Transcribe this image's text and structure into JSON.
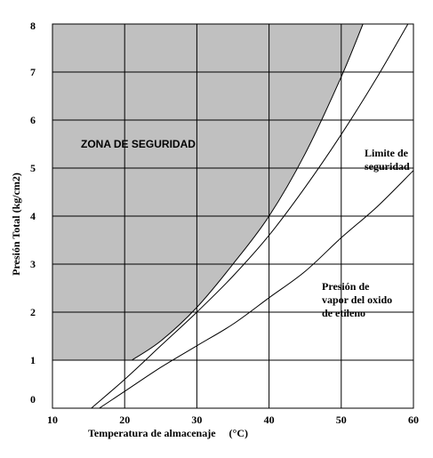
{
  "chart_data": {
    "type": "line",
    "xlabel": "Temperatura de almacenaje",
    "xunit": "(°C)",
    "ylabel": "Presión Total (kg/cm2)",
    "xlim": [
      10,
      60
    ],
    "ylim": [
      0,
      8
    ],
    "x_ticks": [
      "10",
      "20",
      "30",
      "40",
      "50",
      "60"
    ],
    "y_ticks": [
      "0",
      "1",
      "2",
      "3",
      "4",
      "5",
      "6",
      "7",
      "8"
    ],
    "grid": true,
    "zone_fill": "#c0c0c0",
    "zone_label": "ZONA DE SEGURIDAD",
    "series": [
      {
        "name": "Limite de seguridad",
        "label_lines": [
          "Limite de",
          "seguridad"
        ],
        "color": "#000000",
        "x": [
          21.0,
          25.0,
          30.0,
          35.0,
          40.0,
          45.0,
          50.0,
          53.0
        ],
        "y": [
          1.0,
          1.4,
          2.1,
          3.0,
          4.0,
          5.3,
          6.9,
          8.0
        ]
      },
      {
        "name": "",
        "color": "#000000",
        "x": [
          13.3,
          15.0,
          20.0,
          25.0,
          30.0,
          35.0,
          40.0,
          45.0,
          50.0,
          55.0,
          60.0
        ],
        "y": [
          -0.3,
          -0.05,
          0.6,
          1.3,
          2.0,
          2.75,
          3.6,
          4.6,
          5.7,
          6.9,
          8.2
        ]
      },
      {
        "name": "Presión de vapor del oxido de etileno",
        "label_lines": [
          "Presión de",
          "vapor del oxido",
          "de etileno"
        ],
        "color": "#000000",
        "x": [
          13.8,
          15.0,
          20.0,
          25.0,
          30.0,
          35.0,
          40.0,
          45.0,
          50.0,
          55.0,
          60.0
        ],
        "y": [
          -0.3,
          -0.15,
          0.35,
          0.85,
          1.3,
          1.75,
          2.3,
          2.85,
          3.55,
          4.2,
          4.95
        ]
      }
    ]
  }
}
